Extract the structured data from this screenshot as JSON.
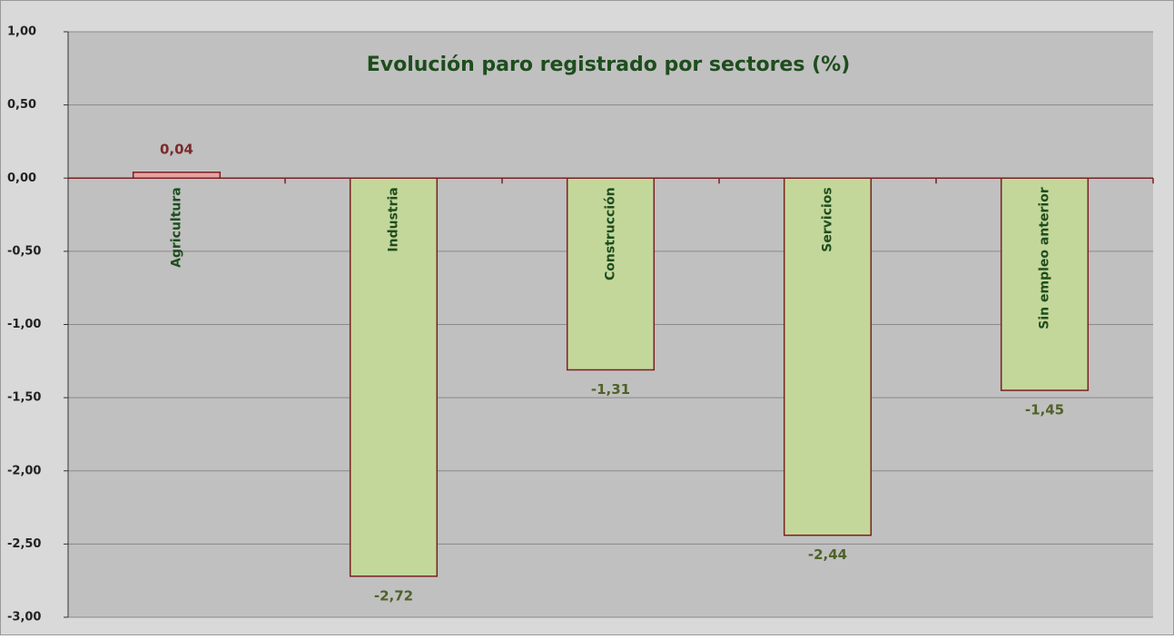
{
  "chart_data": {
    "type": "bar",
    "title": "Evolución paro registrado por sectores (%)",
    "categories": [
      "Agricultura",
      "Industria",
      "Construcción",
      "Servicios",
      "Sin empleo anterior"
    ],
    "values": [
      0.04,
      -2.72,
      -1.31,
      -2.44,
      -1.45
    ],
    "value_labels": [
      "0,04",
      "-2,72",
      "-1,31",
      "-2,44",
      "-1,45"
    ],
    "colors": [
      "#e6a3a3",
      "#c4d79b",
      "#c4d79b",
      "#c4d79b",
      "#c4d79b"
    ],
    "label_colors": [
      "#7b2a2a",
      "#4f6228",
      "#4f6228",
      "#4f6228",
      "#4f6228"
    ],
    "ylim": [
      -3,
      1
    ],
    "yticks": [
      {
        "value": -3,
        "label": "-3,00"
      },
      {
        "value": -2.5,
        "label": "-2,50"
      },
      {
        "value": -2,
        "label": "-2,00"
      },
      {
        "value": -1.5,
        "label": "-1,50"
      },
      {
        "value": -1,
        "label": "-1,00"
      },
      {
        "value": -0.5,
        "label": "-0,50"
      },
      {
        "value": 0,
        "label": "0,00"
      },
      {
        "value": 0.5,
        "label": "0,50"
      },
      {
        "value": 1,
        "label": "1,00"
      }
    ],
    "grid": true
  }
}
